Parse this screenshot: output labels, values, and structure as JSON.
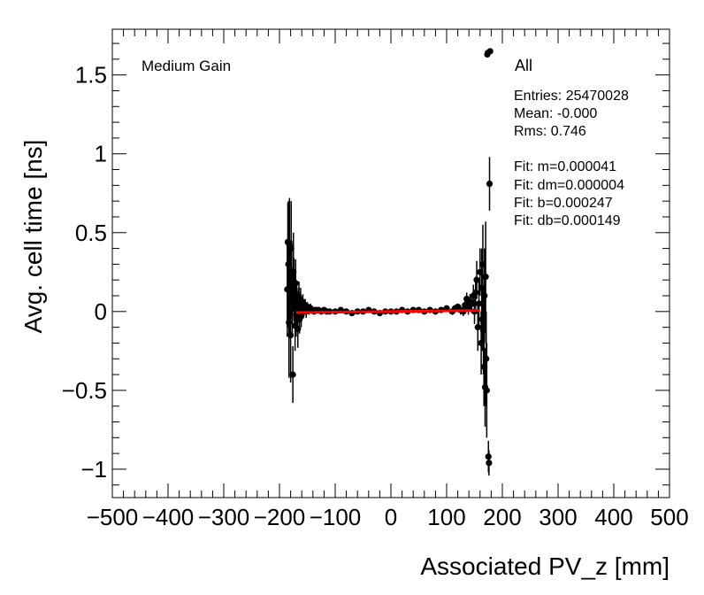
{
  "chart_data": {
    "type": "scatter",
    "title": "",
    "xlabel": "Associated PV_z [mm]",
    "ylabel": "Avg. cell time [ns]",
    "xlim": [
      -500,
      500
    ],
    "ylim": [
      -1.18,
      1.79
    ],
    "grid": false,
    "x_ticks": [
      -500,
      -400,
      -300,
      -200,
      -100,
      0,
      100,
      200,
      300,
      400,
      500
    ],
    "x_tick_labels": [
      "−500",
      "−400",
      "−300",
      "−200",
      "−100",
      "0",
      "100",
      "200",
      "300",
      "400",
      "500"
    ],
    "y_ticks": [
      -1,
      -0.5,
      0,
      0.5,
      1,
      1.5
    ],
    "y_tick_labels": [
      "−1",
      "−0.5",
      "0",
      "0.5",
      "1",
      "1.5"
    ],
    "label_left": "Medium Gain",
    "stats": {
      "header": "All",
      "lines": [
        "Entries: 25470028",
        "Mean: -0.000",
        "Rms: 0.746",
        "",
        "Fit: m=0.000041",
        "Fit: dm=0.000004",
        "Fit: b=0.000247",
        "Fit: db=0.000149"
      ]
    },
    "fit": {
      "slope": 4.1e-05,
      "intercept": 0.000247,
      "x_range": [
        -170,
        160
      ],
      "color": "#ff0000"
    },
    "series": [
      {
        "name": "data",
        "color": "#000000",
        "x": [
          -186,
          -185,
          -184,
          -183,
          -182,
          -181,
          -180,
          -179,
          -178,
          -177,
          -176,
          -175,
          -174,
          -173,
          -172,
          -171,
          -170,
          -169,
          -168,
          -167,
          -166,
          -165,
          -164,
          -163,
          -162,
          -161,
          -160,
          -158,
          -156,
          -154,
          -152,
          -150,
          -147,
          -144,
          -141,
          -138,
          -135,
          -130,
          -125,
          -120,
          -115,
          -110,
          -100,
          -90,
          -80,
          -70,
          -60,
          -50,
          -40,
          -30,
          -20,
          -10,
          0,
          10,
          20,
          30,
          40,
          50,
          60,
          70,
          80,
          90,
          100,
          110,
          115,
          120,
          125,
          130,
          133,
          136,
          139,
          142,
          145,
          148,
          150,
          152,
          154,
          156,
          158,
          160,
          162,
          163,
          164,
          165,
          166,
          167,
          168,
          169,
          170,
          171,
          172,
          173,
          174,
          175,
          176,
          177,
          178
        ],
        "y": [
          0.14,
          0.44,
          0.3,
          -0.07,
          0.42,
          0.12,
          -0.15,
          0.4,
          0.2,
          0.06,
          -0.4,
          0.25,
          0.14,
          0.08,
          -0.09,
          0.18,
          -0.02,
          0.06,
          0.01,
          -0.11,
          0.05,
          0.09,
          -0.05,
          0.04,
          0.07,
          -0.03,
          0.03,
          0.06,
          0.02,
          0.04,
          0.0,
          0.03,
          0.01,
          0.02,
          0.01,
          0.0,
          0.01,
          0.01,
          0.0,
          0.01,
          0.0,
          0.0,
          0.0,
          0.01,
          0.0,
          -0.01,
          0.0,
          0.0,
          0.01,
          0.0,
          -0.01,
          0.0,
          0.0,
          0.0,
          0.01,
          0.0,
          0.01,
          0.01,
          0.0,
          0.01,
          0.0,
          0.01,
          0.02,
          0.0,
          0.02,
          0.03,
          0.01,
          0.0,
          0.04,
          0.08,
          0.02,
          0.06,
          0.05,
          0.1,
          0.0,
          0.12,
          0.2,
          -0.1,
          0.05,
          0.25,
          -0.2,
          0.15,
          -0.05,
          0.3,
          -0.12,
          -0.35,
          0.1,
          -0.48,
          0.22,
          -0.3,
          -0.5,
          1.63,
          1.64,
          -0.92,
          -0.96,
          0.81,
          1.65
        ],
        "err": [
          0.3,
          0.25,
          0.4,
          0.35,
          0.3,
          0.28,
          0.3,
          0.3,
          0.25,
          0.22,
          0.18,
          0.25,
          0.2,
          0.18,
          0.16,
          0.15,
          0.14,
          0.12,
          0.12,
          0.12,
          0.1,
          0.1,
          0.09,
          0.08,
          0.08,
          0.07,
          0.06,
          0.05,
          0.05,
          0.04,
          0.04,
          0.03,
          0.03,
          0.03,
          0.02,
          0.02,
          0.02,
          0.02,
          0.015,
          0.015,
          0.012,
          0.012,
          0.01,
          0.01,
          0.01,
          0.01,
          0.01,
          0.01,
          0.01,
          0.01,
          0.01,
          0.01,
          0.01,
          0.01,
          0.01,
          0.01,
          0.01,
          0.01,
          0.01,
          0.01,
          0.012,
          0.012,
          0.015,
          0.02,
          0.02,
          0.02,
          0.03,
          0.03,
          0.03,
          0.04,
          0.04,
          0.05,
          0.06,
          0.07,
          0.08,
          0.1,
          0.12,
          0.15,
          0.15,
          0.15,
          0.2,
          0.25,
          0.2,
          0.25,
          0.28,
          0.25,
          0.3,
          0.25,
          0.35,
          0.3,
          0.3,
          0.02,
          0.02,
          0.1,
          0.08,
          0.17,
          0.02
        ]
      }
    ]
  }
}
